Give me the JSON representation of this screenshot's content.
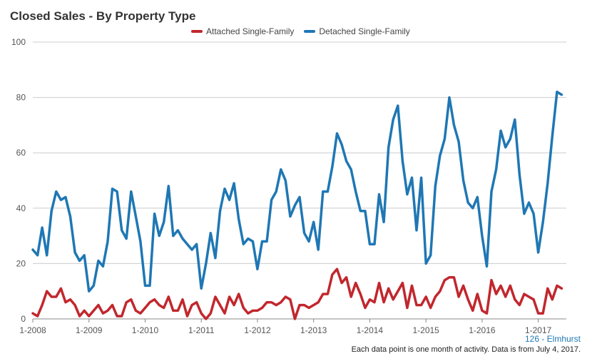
{
  "chart_data": {
    "type": "line",
    "title": "Closed Sales - By Property Type",
    "xlabel": "",
    "ylabel": "",
    "ylim": [
      0,
      100
    ],
    "yticks": [
      0,
      20,
      40,
      60,
      80,
      100
    ],
    "grid": true,
    "legend": "top",
    "xtick_labels": [
      "1-2008",
      "1-2009",
      "1-2010",
      "1-2011",
      "1-2012",
      "1-2013",
      "1-2014",
      "1-2015",
      "1-2016",
      "1-2017"
    ],
    "start_month": "1-2008",
    "series": [
      {
        "name": "Attached Single-Family",
        "color": "#c1272d",
        "values": [
          2,
          1,
          5,
          10,
          8,
          8,
          11,
          6,
          7,
          5,
          1,
          3,
          1,
          3,
          5,
          2,
          3,
          5,
          1,
          1,
          6,
          7,
          3,
          2,
          4,
          6,
          7,
          5,
          4,
          8,
          3,
          3,
          7,
          1,
          5,
          6,
          2,
          0,
          2,
          8,
          5,
          2,
          8,
          5,
          9,
          4,
          2,
          3,
          3,
          4,
          6,
          6,
          5,
          6,
          8,
          7,
          0,
          5,
          5,
          4,
          5,
          6,
          9,
          9,
          16,
          18,
          13,
          15,
          8,
          13,
          9,
          4,
          7,
          6,
          13,
          6,
          11,
          7,
          10,
          13,
          4,
          12,
          5,
          5,
          8,
          4,
          8,
          10,
          14,
          15,
          15,
          8,
          12,
          7,
          3,
          9,
          3,
          2,
          14,
          9,
          12,
          8,
          12,
          7,
          5,
          9,
          8,
          7,
          2,
          2,
          11,
          7,
          12,
          11
        ]
      },
      {
        "name": "Detached Single-Family",
        "color": "#1f77b4",
        "values": [
          25,
          23,
          33,
          23,
          39,
          46,
          43,
          44,
          37,
          24,
          21,
          23,
          10,
          12,
          21,
          19,
          28,
          47,
          46,
          32,
          29,
          46,
          37,
          28,
          12,
          12,
          38,
          30,
          35,
          48,
          30,
          32,
          29,
          27,
          25,
          27,
          11,
          20,
          31,
          22,
          39,
          47,
          43,
          49,
          36,
          27,
          29,
          28,
          18,
          28,
          28,
          43,
          46,
          54,
          50,
          37,
          41,
          44,
          31,
          28,
          35,
          25,
          46,
          46,
          55,
          67,
          63,
          57,
          54,
          46,
          39,
          39,
          27,
          27,
          45,
          35,
          62,
          72,
          77,
          57,
          45,
          51,
          32,
          51,
          20,
          23,
          48,
          59,
          65,
          80,
          70,
          64,
          50,
          42,
          40,
          44,
          30,
          19,
          46,
          54,
          68,
          62,
          65,
          72,
          52,
          38,
          42,
          38,
          24,
          35,
          49,
          66,
          82,
          81
        ]
      }
    ]
  },
  "source_label": "126 - Elmhurst",
  "footnote": "Each data point is one month of activity. Data is from July 4, 2017."
}
